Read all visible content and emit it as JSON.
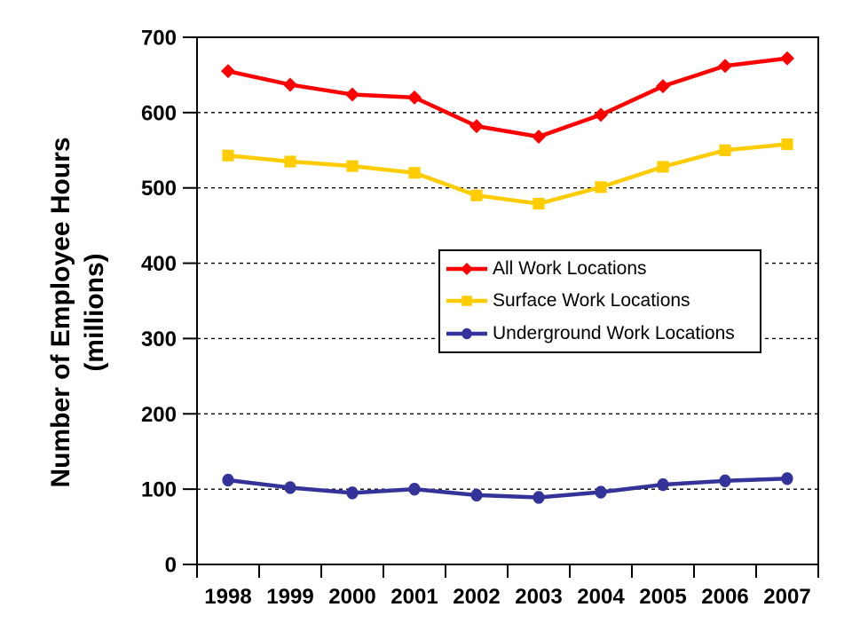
{
  "chart": {
    "y_axis_title_line1": "Number of Employee Hours",
    "y_axis_title_line2": "(millions)",
    "background_color": "#FFFFFF",
    "axis_color": "#000000"
  },
  "chart_data": {
    "type": "line",
    "title": "",
    "xlabel": "",
    "ylabel": "Number of Employee Hours (millions)",
    "categories": [
      "1998",
      "1999",
      "2000",
      "2001",
      "2002",
      "2003",
      "2004",
      "2005",
      "2006",
      "2007"
    ],
    "series": [
      {
        "name": "All Work Locations",
        "color": "#FF0000",
        "marker": "diamond",
        "values": [
          655,
          637,
          624,
          620,
          582,
          568,
          597,
          635,
          662,
          672
        ]
      },
      {
        "name": "Surface Work Locations",
        "color": "#FFCC00",
        "marker": "square",
        "values": [
          543,
          535,
          529,
          520,
          490,
          479,
          501,
          528,
          550,
          558
        ]
      },
      {
        "name": "Underground Work Locations",
        "color": "#333399",
        "marker": "circle",
        "values": [
          112,
          102,
          95,
          100,
          92,
          89,
          96,
          106,
          111,
          114
        ]
      }
    ],
    "ylim": [
      0,
      700
    ],
    "y_ticks": [
      0,
      100,
      200,
      300,
      400,
      500,
      600,
      700
    ],
    "grid": "horizontal-dashed",
    "legend_position": "inside-center-right"
  }
}
